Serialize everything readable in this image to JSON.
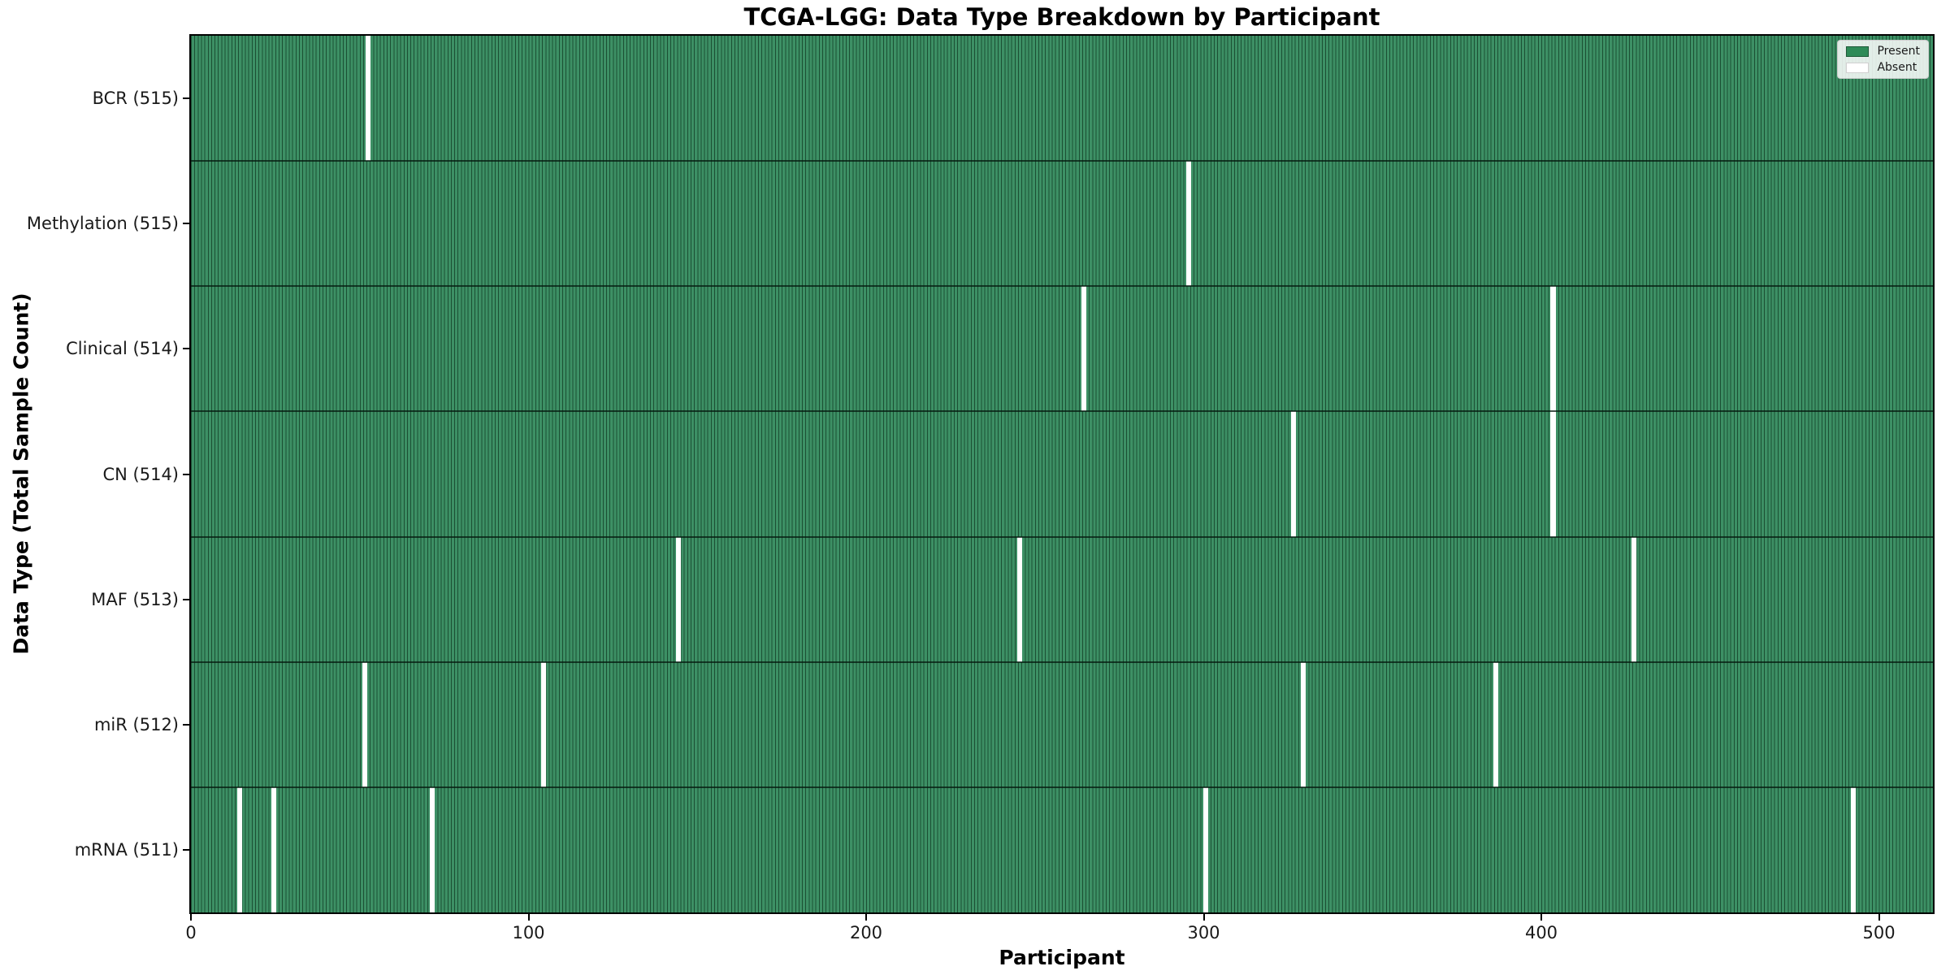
{
  "chart_data": {
    "type": "heatmap",
    "title": "TCGA-LGG: Data Type Breakdown by Participant",
    "xlabel": "Participant",
    "ylabel": "Data Type (Total Sample Count)",
    "x_ticks": [
      0,
      100,
      200,
      300,
      400,
      500
    ],
    "xlim": [
      0,
      516
    ],
    "n_participants": 516,
    "grid": false,
    "legend": {
      "position": "upper right",
      "entries": [
        {
          "label": "Present",
          "color": "#2e8b57"
        },
        {
          "label": "Absent",
          "color": "#ffffff"
        }
      ]
    },
    "colors": {
      "present_fill": "#3d9065",
      "present_edge": "#1b4f33",
      "absent": "#ffffff",
      "separator": "rgba(5,25,15,0.75)",
      "spine": "#000000"
    },
    "rows": [
      {
        "name": "BCR",
        "label": "BCR (515)",
        "total": 515,
        "absent_participants": [
          52
        ]
      },
      {
        "name": "Methylation",
        "label": "Methylation (515)",
        "total": 515,
        "absent_participants": [
          295
        ]
      },
      {
        "name": "Clinical",
        "label": "Clinical (514)",
        "total": 514,
        "absent_participants": [
          264,
          403
        ]
      },
      {
        "name": "CN",
        "label": "CN (514)",
        "total": 514,
        "absent_participants": [
          326,
          403
        ]
      },
      {
        "name": "MAF",
        "label": "MAF (513)",
        "total": 513,
        "absent_participants": [
          144,
          245,
          427
        ]
      },
      {
        "name": "miR",
        "label": "miR (512)",
        "total": 512,
        "absent_participants": [
          51,
          104,
          329,
          386
        ]
      },
      {
        "name": "mRNA",
        "label": "mRNA (511)",
        "total": 511,
        "absent_participants": [
          14,
          24,
          71,
          300,
          492
        ]
      }
    ]
  }
}
